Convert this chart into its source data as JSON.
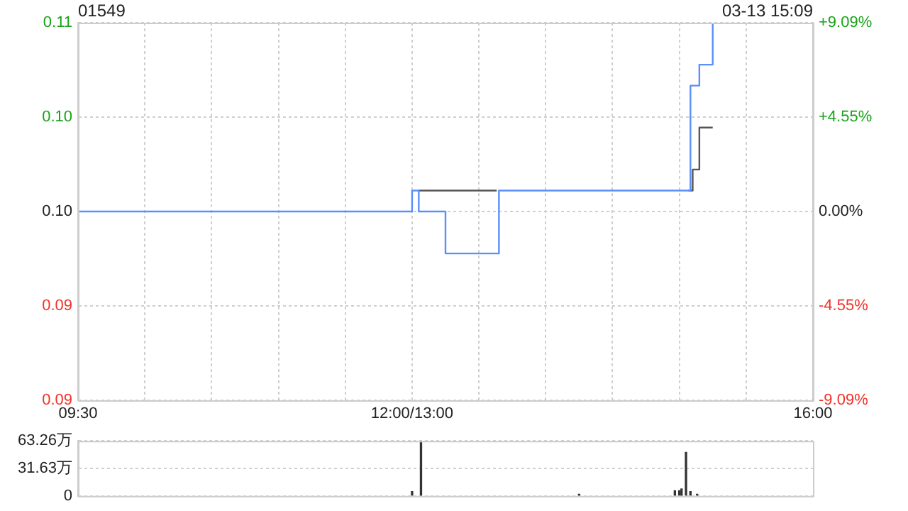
{
  "chart_data": [
    {
      "type": "step",
      "title": "01549",
      "annotations": [
        "03-13 15:09"
      ],
      "categories": [
        "09:30",
        null,
        null,
        null,
        null,
        null,
        null,
        null,
        null,
        null,
        null,
        null,
        null,
        null,
        null,
        null,
        null,
        null,
        null,
        null,
        null,
        null,
        null,
        null,
        null,
        null,
        null,
        null,
        null,
        null,
        null,
        null,
        null,
        null,
        null,
        null,
        null,
        null,
        null,
        null,
        null,
        null,
        null,
        null,
        null,
        null,
        null,
        null,
        null,
        null,
        null,
        null,
        null,
        null,
        null,
        null,
        null,
        null,
        null,
        null,
        null,
        null,
        null,
        null,
        null,
        null,
        null,
        null,
        null,
        null,
        null,
        null,
        null,
        null,
        null,
        null,
        null,
        null,
        null,
        null,
        null,
        null,
        null,
        null,
        null,
        null,
        null,
        null,
        null,
        null,
        null,
        null,
        null,
        null,
        null,
        null,
        null,
        null,
        null,
        null,
        null,
        null,
        null,
        null,
        null,
        null,
        null,
        null,
        null,
        null,
        null,
        null,
        null,
        null,
        null,
        null,
        null,
        null,
        null,
        null,
        null,
        null,
        null,
        null,
        null,
        null,
        null,
        null,
        null,
        null,
        null,
        null,
        null,
        null,
        null,
        null,
        null,
        null,
        null,
        null,
        null,
        null,
        null,
        null,
        null,
        null,
        null,
        null,
        null,
        null,
        "12:00/13:00",
        null,
        null,
        null,
        null,
        null,
        null,
        null,
        null,
        null,
        null,
        null,
        null,
        null,
        null,
        null,
        null,
        null,
        null,
        null,
        null,
        null,
        null,
        null,
        null,
        null,
        null,
        null,
        null,
        null,
        null,
        null,
        null,
        null,
        null,
        null,
        null,
        null,
        null,
        null,
        null,
        null,
        null,
        null,
        null,
        null,
        null,
        null,
        null,
        null,
        null,
        null,
        null,
        null,
        null,
        null,
        null,
        null,
        null,
        null,
        null,
        null,
        null,
        null,
        null,
        null,
        null,
        null,
        null,
        null,
        null,
        null,
        null,
        null,
        null,
        null,
        null,
        null,
        null,
        null,
        null,
        null,
        null,
        null,
        null,
        null,
        null,
        null,
        null,
        null,
        null,
        null,
        null,
        null,
        null,
        null,
        null,
        null,
        null,
        null,
        null,
        null,
        null,
        null,
        null,
        null,
        null,
        null,
        null,
        null,
        null,
        null,
        null,
        null,
        null,
        null,
        null,
        null,
        null,
        null,
        null,
        null,
        null,
        null,
        null,
        null,
        null,
        null,
        null,
        null,
        null,
        null,
        null,
        null,
        null,
        null,
        null,
        null,
        null,
        null,
        null,
        null,
        null,
        null,
        null,
        null,
        null,
        null,
        null,
        null,
        null,
        null,
        null,
        null,
        null,
        null,
        null,
        null,
        null,
        null,
        null,
        null,
        null,
        null,
        null,
        null,
        null,
        null,
        null,
        null,
        null,
        null,
        null,
        null,
        null,
        null,
        null,
        null,
        null,
        null,
        "16:00"
      ],
      "ylim": [
        0.09,
        0.108
      ],
      "yticks": [
        {
          "value": 0.108,
          "label": "0.11"
        },
        {
          "value": 0.1035,
          "label": "0.10"
        },
        {
          "value": 0.099,
          "label": "0.10"
        },
        {
          "value": 0.0945,
          "label": "0.09"
        },
        {
          "value": 0.09,
          "label": "0.09"
        }
      ],
      "y2lim": [
        -9.09,
        9.09
      ],
      "y2ticks": [
        {
          "value": 9.09,
          "label": "+9.09%"
        },
        {
          "value": 4.55,
          "label": "+4.55%"
        },
        {
          "value": 0,
          "label": "0.00%"
        },
        {
          "value": -4.55,
          "label": "-4.55%"
        },
        {
          "value": -9.09,
          "label": "-9.09%"
        }
      ],
      "grid": true,
      "legend": false,
      "marker": "none",
      "series": [
        {
          "color": "#5b8ff9",
          "values": [
            0.099,
            0.099,
            0.099,
            0.099,
            0.099,
            0.099,
            0.099,
            0.099,
            0.099,
            0.099,
            0.099,
            0.099,
            0.099,
            0.099,
            0.099,
            0.099,
            0.099,
            0.099,
            0.099,
            0.099,
            0.099,
            0.099,
            0.099,
            0.099,
            0.099,
            0.099,
            0.099,
            0.099,
            0.099,
            0.099,
            0.099,
            0.099,
            0.099,
            0.099,
            0.099,
            0.099,
            0.099,
            0.099,
            0.099,
            0.099,
            0.099,
            0.099,
            0.099,
            0.099,
            0.099,
            0.099,
            0.099,
            0.099,
            0.099,
            0.099,
            0.099,
            0.099,
            0.099,
            0.099,
            0.099,
            0.099,
            0.099,
            0.099,
            0.099,
            0.099,
            0.099,
            0.099,
            0.099,
            0.099,
            0.099,
            0.099,
            0.099,
            0.099,
            0.099,
            0.099,
            0.099,
            0.099,
            0.099,
            0.099,
            0.099,
            0.099,
            0.099,
            0.099,
            0.099,
            0.099,
            0.099,
            0.099,
            0.099,
            0.099,
            0.099,
            0.099,
            0.099,
            0.099,
            0.099,
            0.099,
            0.099,
            0.099,
            0.099,
            0.099,
            0.099,
            0.099,
            0.099,
            0.099,
            0.099,
            0.099,
            0.099,
            0.099,
            0.099,
            0.099,
            0.099,
            0.099,
            0.099,
            0.099,
            0.099,
            0.099,
            0.099,
            0.099,
            0.099,
            0.099,
            0.099,
            0.099,
            0.099,
            0.099,
            0.099,
            0.099,
            0.099,
            0.099,
            0.099,
            0.099,
            0.099,
            0.099,
            0.099,
            0.099,
            0.099,
            0.099,
            0.099,
            0.099,
            0.099,
            0.099,
            0.099,
            0.099,
            0.099,
            0.099,
            0.099,
            0.099,
            0.099,
            0.099,
            0.099,
            0.099,
            0.099,
            0.099,
            0.099,
            0.099,
            0.099,
            0.099,
            0.1,
            0.1,
            0.1,
            0.099,
            0.099,
            0.099,
            0.099,
            0.099,
            0.099,
            0.099,
            0.099,
            0.099,
            0.099,
            0.099,
            0.099,
            0.097,
            0.097,
            0.097,
            0.097,
            0.097,
            0.097,
            0.097,
            0.097,
            0.097,
            0.097,
            0.097,
            0.097,
            0.097,
            0.097,
            0.097,
            0.097,
            0.097,
            0.097,
            0.097,
            0.097,
            0.097,
            0.097,
            0.097,
            0.097,
            0.1,
            0.1,
            0.1,
            0.1,
            0.1,
            0.1,
            0.1,
            0.1,
            0.1,
            0.1,
            0.1,
            0.1,
            0.1,
            0.1,
            0.1,
            0.1,
            0.1,
            0.1,
            0.1,
            0.1,
            0.1,
            0.1,
            0.1,
            0.1,
            0.1,
            0.1,
            0.1,
            0.1,
            0.1,
            0.1,
            0.1,
            0.1,
            0.1,
            0.1,
            0.1,
            0.1,
            0.1,
            0.1,
            0.1,
            0.1,
            0.1,
            0.1,
            0.1,
            0.1,
            0.1,
            0.1,
            0.1,
            0.1,
            0.1,
            0.1,
            0.1,
            0.1,
            0.1,
            0.1,
            0.1,
            0.1,
            0.1,
            0.1,
            0.1,
            0.1,
            0.1,
            0.1,
            0.1,
            0.1,
            0.1,
            0.1,
            0.1,
            0.1,
            0.1,
            0.1,
            0.1,
            0.1,
            0.1,
            0.1,
            0.1,
            0.1,
            0.1,
            0.1,
            0.1,
            0.1,
            0.1,
            0.1,
            0.1,
            0.1,
            0.1,
            0.1,
            0.105,
            0.105,
            0.105,
            0.105,
            0.106,
            0.106,
            0.106,
            0.106,
            0.106,
            0.106,
            0.108,
            null,
            null,
            null,
            null,
            null,
            null,
            null,
            null,
            null,
            null,
            null,
            null,
            null,
            null,
            null,
            null,
            null,
            null,
            null,
            null,
            null,
            null,
            null,
            null,
            null,
            null,
            null,
            null,
            null,
            null,
            null,
            null,
            null,
            null,
            null,
            null,
            null,
            null,
            null,
            null,
            null,
            null,
            null,
            null,
            null
          ]
        },
        {
          "color": "#555555",
          "values": [
            null,
            null,
            null,
            null,
            null,
            null,
            null,
            null,
            null,
            null,
            null,
            null,
            null,
            null,
            null,
            null,
            null,
            null,
            null,
            null,
            null,
            null,
            null,
            null,
            null,
            null,
            null,
            null,
            null,
            null,
            null,
            null,
            null,
            null,
            null,
            null,
            null,
            null,
            null,
            null,
            null,
            null,
            null,
            null,
            null,
            null,
            null,
            null,
            null,
            null,
            null,
            null,
            null,
            null,
            null,
            null,
            null,
            null,
            null,
            null,
            null,
            null,
            null,
            null,
            null,
            null,
            null,
            null,
            null,
            null,
            null,
            null,
            null,
            null,
            null,
            null,
            null,
            null,
            null,
            null,
            null,
            null,
            null,
            null,
            null,
            null,
            null,
            null,
            null,
            null,
            null,
            null,
            null,
            null,
            null,
            null,
            null,
            null,
            null,
            null,
            null,
            null,
            null,
            null,
            null,
            null,
            null,
            null,
            null,
            null,
            null,
            null,
            null,
            null,
            null,
            null,
            null,
            null,
            null,
            null,
            null,
            null,
            null,
            null,
            null,
            null,
            null,
            null,
            null,
            null,
            null,
            null,
            null,
            null,
            null,
            null,
            null,
            null,
            null,
            null,
            null,
            null,
            null,
            null,
            null,
            null,
            null,
            null,
            null,
            null,
            null,
            null,
            null,
            0.1,
            0.1,
            0.1,
            0.1,
            0.1,
            0.1,
            0.1,
            0.1,
            0.1,
            0.1,
            0.1,
            0.1,
            0.1,
            0.1,
            0.1,
            0.1,
            0.1,
            0.1,
            0.1,
            0.1,
            0.1,
            0.1,
            0.1,
            0.1,
            0.1,
            0.1,
            0.1,
            0.1,
            0.1,
            0.1,
            0.1,
            0.1,
            0.1,
            0.1,
            0.1,
            0.1,
            null,
            null,
            null,
            null,
            null,
            null,
            null,
            null,
            null,
            null,
            null,
            null,
            null,
            null,
            null,
            null,
            null,
            null,
            null,
            null,
            null,
            null,
            null,
            null,
            null,
            null,
            null,
            null,
            null,
            null,
            null,
            null,
            null,
            null,
            null,
            null,
            null,
            null,
            null,
            null,
            null,
            null,
            null,
            null,
            null,
            null,
            null,
            null,
            null,
            null,
            null,
            null,
            null,
            null,
            null,
            null,
            null,
            null,
            null,
            null,
            null,
            null,
            null,
            null,
            null,
            null,
            null,
            null,
            null,
            null,
            null,
            null,
            null,
            null,
            null,
            null,
            null,
            null,
            null,
            null,
            null,
            null,
            null,
            null,
            null,
            0.1,
            0.1,
            0.101,
            0.101,
            0.101,
            0.103,
            0.103,
            0.103,
            0.103,
            0.103,
            0.103,
            0.103,
            null,
            null,
            null,
            null,
            null,
            null,
            null,
            null,
            null,
            null,
            null,
            null,
            null,
            null,
            null,
            null,
            null,
            null,
            null,
            null,
            null,
            null,
            null,
            null,
            null,
            null,
            null,
            null,
            null,
            null,
            null,
            null,
            null,
            null,
            null,
            null,
            null,
            null,
            null,
            null,
            null,
            null,
            null,
            null,
            null
          ]
        }
      ]
    },
    {
      "type": "bar",
      "color": "#333333",
      "ylim": [
        0,
        63.26
      ],
      "yticks": [
        {
          "value": 0,
          "label": "0"
        },
        {
          "value": 31.63,
          "label": "31.63万"
        },
        {
          "value": 63.26,
          "label": "63.26万"
        }
      ],
      "grid": "y",
      "tick_labels": "y",
      "legend": false,
      "categories": [
        null,
        null,
        null,
        null,
        null,
        null,
        null,
        null,
        null,
        null,
        null,
        null,
        null,
        null,
        null,
        null,
        null,
        null,
        null,
        null,
        null,
        null,
        null,
        null,
        null,
        null,
        null,
        null,
        null,
        null,
        null,
        null,
        null,
        null,
        null,
        null,
        null,
        null,
        null,
        null,
        null,
        null,
        null,
        null,
        null,
        null,
        null,
        null,
        null,
        null,
        null,
        null,
        null,
        null,
        null,
        null,
        null,
        null,
        null,
        null,
        null,
        null,
        null,
        null,
        null,
        null,
        null,
        null,
        null,
        null,
        null,
        null,
        null,
        null,
        null,
        null,
        null,
        null,
        null,
        null,
        null,
        null,
        null,
        null,
        null,
        null,
        null,
        null,
        null,
        null,
        null,
        null,
        null,
        null,
        null,
        null,
        null,
        null,
        null,
        null,
        null,
        null,
        null,
        null,
        null,
        null,
        null,
        null,
        null,
        null,
        null,
        null,
        null,
        null,
        null,
        null,
        null,
        null,
        null,
        null,
        null,
        null,
        null,
        null,
        null,
        null,
        null,
        null,
        null,
        null,
        null,
        null,
        null,
        null,
        null,
        null,
        null,
        null,
        null,
        null,
        null,
        null,
        null,
        null,
        null,
        null,
        null,
        null,
        null,
        null,
        null,
        null,
        null,
        null,
        null,
        null,
        null,
        null,
        null,
        null,
        null,
        null,
        null,
        null,
        null,
        null,
        null,
        null,
        null,
        null,
        null,
        null,
        null,
        null,
        null,
        null,
        null,
        null,
        null,
        null,
        null,
        null,
        null,
        null,
        null,
        null,
        null,
        null,
        null,
        null,
        null,
        null,
        null,
        null,
        null,
        null,
        null,
        null,
        null,
        null,
        null,
        null,
        null,
        null,
        null,
        null,
        null,
        null,
        null,
        null,
        null,
        null,
        null,
        null,
        null,
        null,
        null,
        null,
        null,
        null,
        null,
        null,
        null,
        null,
        null,
        null,
        null,
        null,
        null,
        null,
        null,
        null,
        null,
        null,
        null,
        null,
        null,
        null,
        null,
        null,
        null,
        null,
        null,
        null,
        null,
        null,
        null,
        null,
        null,
        null,
        null,
        null,
        null,
        null,
        null,
        null,
        null,
        null,
        null,
        null,
        null,
        null,
        null,
        null,
        null,
        null,
        null,
        null,
        null,
        null,
        null,
        null,
        null,
        null,
        null,
        null,
        null,
        null,
        null,
        null,
        null,
        null,
        null,
        null,
        null,
        null,
        null,
        null,
        null,
        null,
        null,
        null,
        null,
        null,
        null,
        null,
        null,
        null,
        null,
        null,
        null,
        null,
        null,
        null,
        null,
        null,
        null,
        null,
        null,
        null,
        null,
        null,
        null,
        null,
        null,
        null,
        null,
        null,
        null,
        null,
        null,
        null,
        null,
        null,
        null,
        null,
        null,
        null,
        null,
        null,
        null
      ],
      "values": [
        null,
        null,
        null,
        null,
        null,
        null,
        null,
        null,
        null,
        null,
        null,
        null,
        null,
        null,
        null,
        null,
        null,
        null,
        null,
        null,
        null,
        null,
        null,
        null,
        null,
        null,
        null,
        null,
        null,
        null,
        null,
        null,
        null,
        null,
        null,
        null,
        null,
        null,
        null,
        null,
        null,
        null,
        null,
        null,
        null,
        null,
        null,
        null,
        null,
        null,
        null,
        null,
        null,
        null,
        null,
        null,
        null,
        null,
        null,
        null,
        null,
        null,
        null,
        null,
        null,
        null,
        null,
        null,
        null,
        null,
        null,
        null,
        null,
        null,
        null,
        null,
        null,
        null,
        null,
        null,
        null,
        null,
        null,
        null,
        null,
        null,
        null,
        null,
        null,
        null,
        null,
        null,
        null,
        null,
        null,
        null,
        null,
        null,
        null,
        null,
        null,
        null,
        null,
        null,
        null,
        null,
        null,
        null,
        null,
        null,
        null,
        null,
        null,
        null,
        null,
        null,
        null,
        null,
        null,
        null,
        null,
        null,
        null,
        null,
        null,
        null,
        null,
        null,
        null,
        null,
        null,
        null,
        null,
        null,
        null,
        null,
        null,
        null,
        null,
        null,
        null,
        null,
        null,
        null,
        null,
        null,
        null,
        null,
        null,
        null,
        5,
        null,
        null,
        null,
        63,
        null,
        null,
        null,
        null,
        null,
        null,
        null,
        null,
        null,
        null,
        null,
        null,
        null,
        null,
        null,
        null,
        null,
        null,
        null,
        null,
        null,
        null,
        null,
        null,
        null,
        null,
        null,
        null,
        null,
        null,
        null,
        null,
        null,
        null,
        null,
        null,
        null,
        null,
        null,
        null,
        null,
        null,
        null,
        null,
        null,
        null,
        null,
        null,
        null,
        null,
        null,
        null,
        null,
        null,
        null,
        null,
        null,
        null,
        null,
        null,
        null,
        null,
        null,
        null,
        null,
        null,
        null,
        null,
        null,
        null,
        2,
        null,
        null,
        null,
        null,
        null,
        null,
        null,
        null,
        null,
        null,
        null,
        null,
        null,
        null,
        null,
        null,
        null,
        null,
        null,
        null,
        null,
        null,
        null,
        null,
        null,
        null,
        null,
        null,
        null,
        null,
        null,
        null,
        null,
        null,
        null,
        null,
        null,
        null,
        null,
        null,
        null,
        null,
        6,
        null,
        6,
        8,
        null,
        50,
        null,
        5,
        null,
        null,
        2,
        null,
        null,
        null,
        null,
        null,
        null,
        null,
        null,
        null,
        null,
        null,
        null,
        null,
        null,
        null,
        null,
        null,
        null,
        null,
        null,
        null,
        null,
        null,
        null,
        null,
        null,
        null,
        null,
        null,
        null,
        null,
        null,
        null,
        null,
        null,
        null,
        null,
        null,
        null,
        null,
        null,
        null,
        null,
        null,
        null,
        null,
        null,
        null,
        null,
        null,
        null,
        null
      ]
    }
  ]
}
